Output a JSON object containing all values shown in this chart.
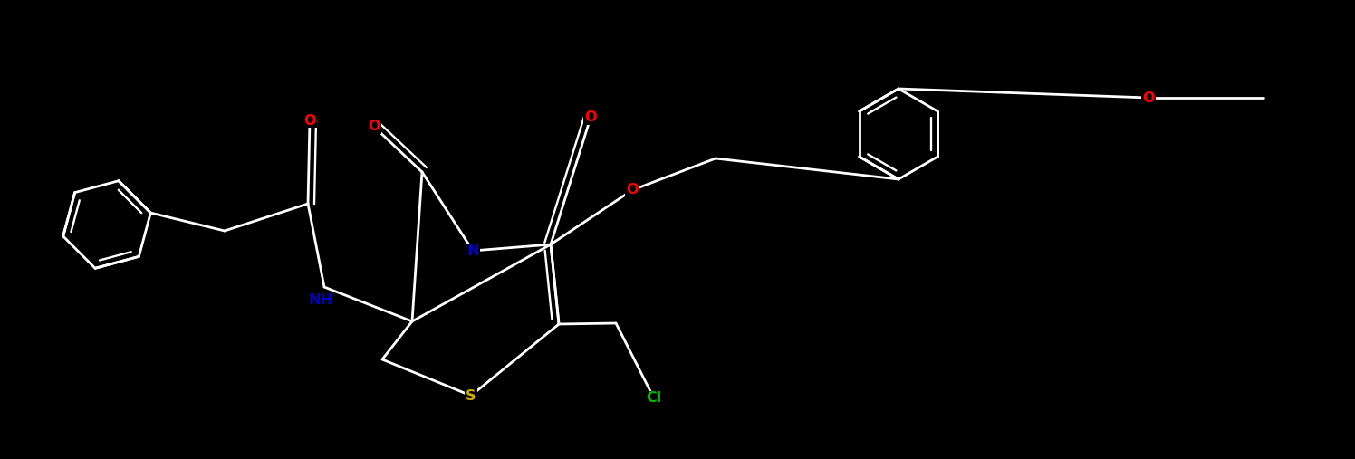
{
  "background_color": "#000000",
  "figsize": [
    14.96,
    5.07
  ],
  "dpi": 100,
  "atom_colors": {
    "O": "#ff0000",
    "N": "#0000cd",
    "S": "#ccaa00",
    "Cl": "#00bb00"
  },
  "lw": 2.0,
  "fs": 11.5
}
